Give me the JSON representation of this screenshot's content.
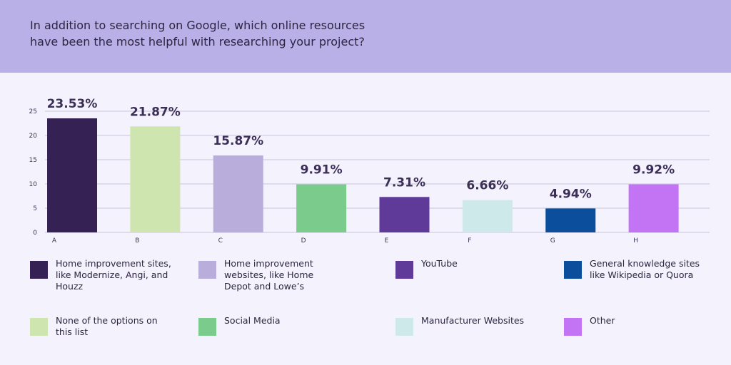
{
  "title": "In addition to searching on Google, which online resources have been the most helpful with researching your project?",
  "chart_data": {
    "type": "bar",
    "categories": [
      "A",
      "B",
      "C",
      "D",
      "E",
      "F",
      "G",
      "H"
    ],
    "values": [
      23.53,
      21.87,
      15.87,
      9.91,
      7.31,
      6.66,
      4.94,
      9.92
    ],
    "data_labels": [
      "23.53%",
      "21.87%",
      "15.87%",
      "9.91%",
      "7.31%",
      "6.66%",
      "4.94%",
      "9.92%"
    ],
    "colors": [
      "#352154",
      "#cfe5b0",
      "#b9aedb",
      "#7acb8c",
      "#5f3a99",
      "#cde9e9",
      "#0b4f9c",
      "#c274f5"
    ],
    "yticks": [
      0,
      5,
      10,
      15,
      20,
      25
    ],
    "ylim": [
      0,
      25
    ],
    "grid": true,
    "legend_position": "bottom",
    "legend": [
      {
        "label": "Home improvement sites, like Modernize, Angi, and Houzz",
        "color": "#352154"
      },
      {
        "label": "Home improvement websites, like Home Depot and Lowe’s",
        "color": "#b9aedb"
      },
      {
        "label": "YouTube",
        "color": "#5f3a99"
      },
      {
        "label": "General knowledge sites like Wikipedia or Quora",
        "color": "#0b4f9c"
      },
      {
        "label": "None of the options on this list",
        "color": "#cfe5b0"
      },
      {
        "label": "Social Media",
        "color": "#7acb8c"
      },
      {
        "label": "Manufacturer Websites",
        "color": "#cde9e9"
      },
      {
        "label": "Other",
        "color": "#c274f5"
      }
    ]
  }
}
